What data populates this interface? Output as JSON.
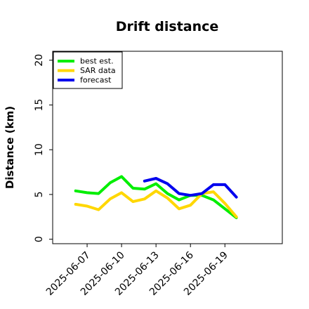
{
  "chart_data": {
    "type": "line",
    "title": "Drift distance",
    "xlabel": "",
    "ylabel": "Distance (km)",
    "x_tick_labels": [
      "2025-06-07",
      "2025-06-10",
      "2025-06-13",
      "2025-06-16",
      "2025-06-19"
    ],
    "x_ticks": [
      "2025-06-07",
      "2025-06-10",
      "2025-06-13",
      "2025-06-16",
      "2025-06-19"
    ],
    "xlim": [
      "2025-06-04",
      "2025-06-24"
    ],
    "ylim": [
      -0.5,
      21
    ],
    "y_ticks": [
      0,
      5,
      10,
      15,
      20
    ],
    "grid": false,
    "legend_position": "top-left",
    "series": [
      {
        "name": "best est.",
        "color": "#00ee00",
        "x": [
          "2025-06-06",
          "2025-06-07",
          "2025-06-08",
          "2025-06-09",
          "2025-06-10",
          "2025-06-11",
          "2025-06-12",
          "2025-06-13",
          "2025-06-14",
          "2025-06-15",
          "2025-06-16",
          "2025-06-17",
          "2025-06-18",
          "2025-06-19",
          "2025-06-20"
        ],
        "values": [
          5.4,
          5.2,
          5.1,
          6.3,
          7.0,
          5.7,
          5.6,
          6.2,
          5.1,
          4.4,
          4.9,
          4.9,
          4.4,
          3.4,
          2.4
        ]
      },
      {
        "name": "SAR data",
        "color": "#ffd700",
        "x": [
          "2025-06-06",
          "2025-06-07",
          "2025-06-08",
          "2025-06-09",
          "2025-06-10",
          "2025-06-11",
          "2025-06-12",
          "2025-06-13",
          "2025-06-14",
          "2025-06-15",
          "2025-06-16",
          "2025-06-17",
          "2025-06-18",
          "2025-06-19",
          "2025-06-20"
        ],
        "values": [
          3.9,
          3.7,
          3.3,
          4.5,
          5.2,
          4.2,
          4.5,
          5.4,
          4.6,
          3.4,
          3.8,
          5.1,
          5.3,
          4.0,
          2.5
        ]
      },
      {
        "name": "forecast",
        "color": "#0000ee",
        "x": [
          "2025-06-12",
          "2025-06-13",
          "2025-06-14",
          "2025-06-15",
          "2025-06-16",
          "2025-06-17",
          "2025-06-18",
          "2025-06-19",
          "2025-06-20"
        ],
        "values": [
          6.5,
          6.8,
          6.2,
          5.1,
          4.9,
          5.1,
          6.1,
          6.1,
          4.7
        ]
      }
    ]
  }
}
